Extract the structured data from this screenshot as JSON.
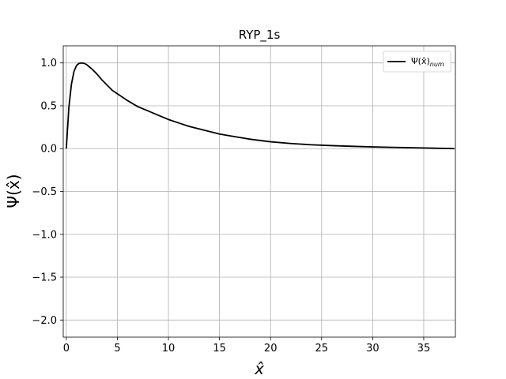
{
  "chart_data": {
    "type": "line",
    "title": "RYP_1s",
    "xlabel": "x̂",
    "ylabel": "Ψ(x̂)",
    "xlim": [
      -0.3,
      38.1
    ],
    "ylim": [
      -2.2,
      1.2
    ],
    "xticks": [
      0,
      5,
      10,
      15,
      20,
      25,
      30,
      35
    ],
    "yticks": [
      -2.0,
      -1.5,
      -1.0,
      -0.5,
      0.0,
      0.5,
      1.0
    ],
    "xtick_labels": [
      "0",
      "5",
      "10",
      "15",
      "20",
      "25",
      "30",
      "35"
    ],
    "ytick_labels": [
      "−2.0",
      "−1.5",
      "−1.0",
      "−0.5",
      "0.0",
      "0.5",
      "1.0"
    ],
    "grid": true,
    "legend_position": "top-right",
    "series": [
      {
        "name_main": "Ψ(x̂)",
        "name_sub": "num",
        "color": "#000000",
        "x": [
          0,
          0.25,
          0.5,
          0.75,
          1.0,
          1.25,
          1.5,
          1.75,
          2.0,
          2.5,
          3.0,
          3.5,
          4.0,
          4.5,
          5.0,
          6.0,
          7.0,
          8.0,
          9.0,
          10.0,
          11.0,
          12.0,
          13.0,
          14.0,
          15.0,
          16.0,
          17.0,
          18.0,
          19.0,
          20.0,
          22.0,
          24.0,
          26.0,
          28.0,
          30.0,
          32.0,
          34.0,
          36.0,
          38.0
        ],
        "y": [
          0.0,
          0.48,
          0.75,
          0.9,
          0.97,
          0.995,
          1.0,
          0.995,
          0.98,
          0.93,
          0.87,
          0.8,
          0.74,
          0.68,
          0.64,
          0.56,
          0.49,
          0.44,
          0.39,
          0.34,
          0.3,
          0.26,
          0.23,
          0.2,
          0.17,
          0.15,
          0.13,
          0.11,
          0.095,
          0.08,
          0.06,
          0.045,
          0.035,
          0.027,
          0.02,
          0.015,
          0.01,
          0.005,
          0.0
        ]
      }
    ]
  }
}
